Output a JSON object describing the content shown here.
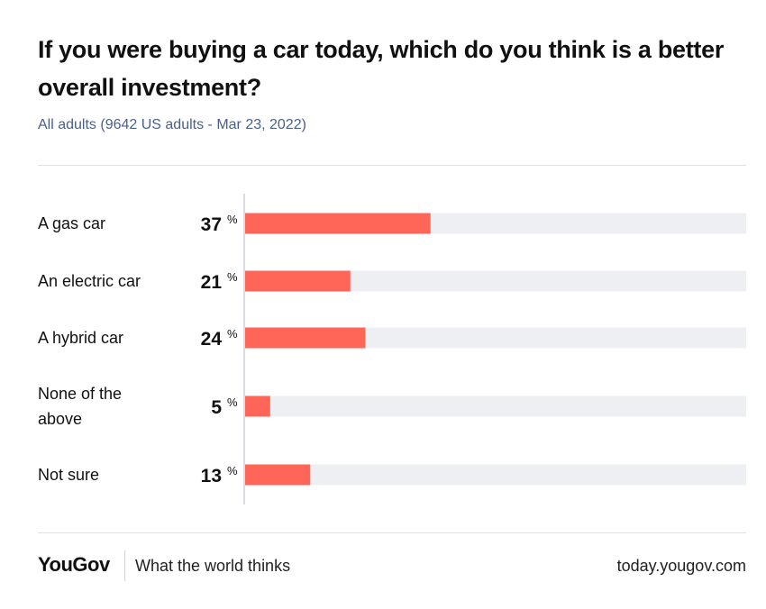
{
  "title": "If you were buying a car today, which do you think is a better overall investment?",
  "subtitle": "All adults (9642 US adults - Mar 23, 2022)",
  "chart_data": {
    "type": "bar",
    "orientation": "horizontal",
    "categories": [
      [
        "A gas car"
      ],
      [
        "An electric car"
      ],
      [
        "A hybrid car"
      ],
      [
        "None of the",
        "above"
      ],
      [
        "Not sure"
      ]
    ],
    "values": [
      37,
      21,
      24,
      5,
      13
    ],
    "value_suffix": "%",
    "xlim": [
      0,
      100
    ],
    "bar_color": "#ff6658",
    "track_color": "#eeeff3"
  },
  "footer": {
    "brand": "YouGov",
    "tagline": "What the world thinks",
    "url": "today.yougov.com"
  }
}
